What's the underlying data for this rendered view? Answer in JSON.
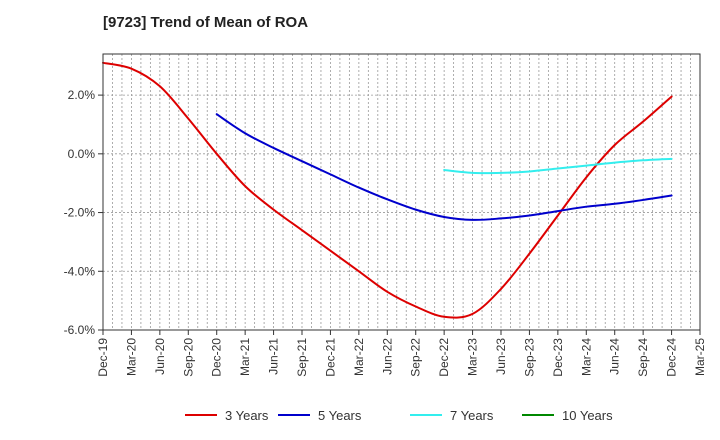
{
  "chart_data": {
    "type": "line",
    "title": "[9723]  Trend of Mean of ROA",
    "xlabel": "",
    "ylabel": "",
    "ylim": [
      -6.0,
      3.4
    ],
    "y_ticks": [
      2.0,
      0.0,
      -2.0,
      -4.0,
      -6.0
    ],
    "y_tick_labels": [
      "2.0%",
      "0.0%",
      "-2.0%",
      "-4.0%",
      "-6.0%"
    ],
    "categories": [
      "Dec-19",
      "Mar-20",
      "Jun-20",
      "Sep-20",
      "Dec-20",
      "Mar-21",
      "Jun-21",
      "Sep-21",
      "Dec-21",
      "Mar-22",
      "Jun-22",
      "Sep-22",
      "Dec-22",
      "Mar-23",
      "Jun-23",
      "Sep-23",
      "Dec-23",
      "Mar-24",
      "Jun-24",
      "Sep-24",
      "Dec-24",
      "Mar-25"
    ],
    "grid": true,
    "legend_position": "bottom",
    "series": [
      {
        "name": "3 Years",
        "color": "#dd0000",
        "values": [
          3.1,
          2.9,
          2.3,
          1.2,
          0.0,
          -1.1,
          -1.9,
          -2.6,
          -3.3,
          -4.0,
          -4.7,
          -5.2,
          -5.55,
          -5.45,
          -4.6,
          -3.4,
          -2.1,
          -0.8,
          0.3,
          1.1,
          1.95,
          null
        ]
      },
      {
        "name": "5 Years",
        "color": "#0000cc",
        "values": [
          null,
          null,
          null,
          null,
          1.35,
          0.7,
          0.2,
          -0.25,
          -0.7,
          -1.15,
          -1.55,
          -1.9,
          -2.15,
          -2.25,
          -2.2,
          -2.1,
          -1.95,
          -1.8,
          -1.7,
          -1.57,
          -1.42,
          null
        ]
      },
      {
        "name": "7 Years",
        "color": "#33eeee",
        "values": [
          null,
          null,
          null,
          null,
          null,
          null,
          null,
          null,
          null,
          null,
          null,
          null,
          -0.55,
          -0.65,
          -0.65,
          -0.6,
          -0.5,
          -0.4,
          -0.3,
          -0.22,
          -0.17,
          null
        ]
      },
      {
        "name": "10 Years",
        "color": "#008800",
        "values": [
          null,
          null,
          null,
          null,
          null,
          null,
          null,
          null,
          null,
          null,
          null,
          null,
          null,
          null,
          null,
          null,
          null,
          null,
          null,
          null,
          null,
          null
        ]
      }
    ]
  }
}
